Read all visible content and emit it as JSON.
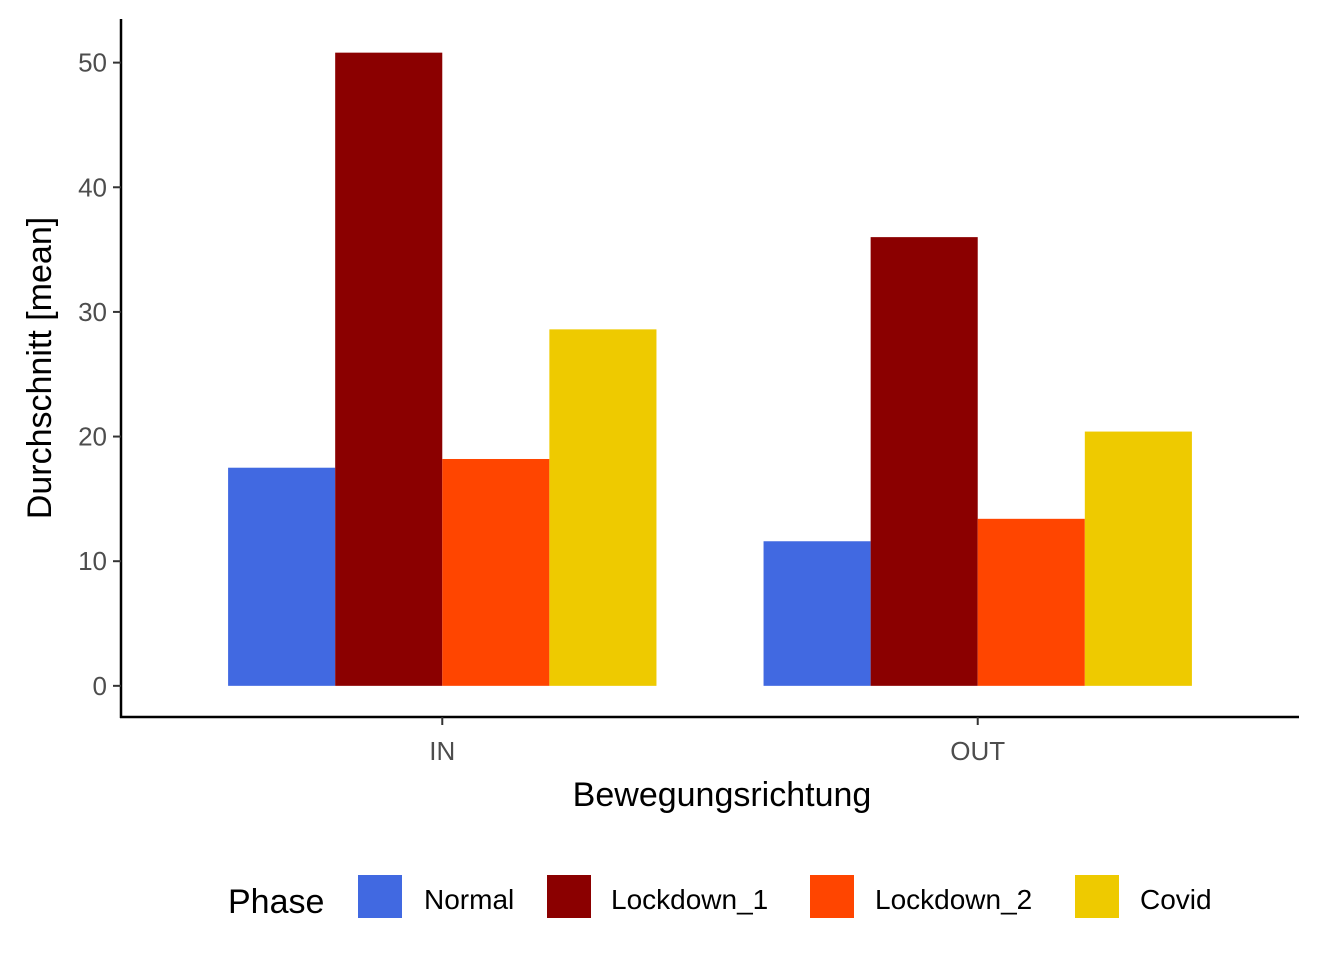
{
  "chart_data": {
    "type": "bar",
    "xlabel": "Bewegungsrichtung",
    "ylabel": "Durchschnitt [mean]",
    "categories": [
      "IN",
      "OUT"
    ],
    "ylim": [
      -2.5,
      53.5
    ],
    "yticks": [
      0,
      10,
      20,
      30,
      40,
      50
    ],
    "legend": {
      "title": "Phase",
      "position": "bottom"
    },
    "grid": false,
    "series": [
      {
        "name": "Normal",
        "color": "#4169E1",
        "values": [
          17.5,
          11.6
        ]
      },
      {
        "name": "Lockdown_1",
        "color": "#8B0000",
        "values": [
          50.8,
          36.0
        ]
      },
      {
        "name": "Lockdown_2",
        "color": "#FF4500",
        "values": [
          18.2,
          13.4
        ]
      },
      {
        "name": "Covid",
        "color": "#EECA00",
        "values": [
          28.6,
          20.4
        ]
      }
    ]
  }
}
